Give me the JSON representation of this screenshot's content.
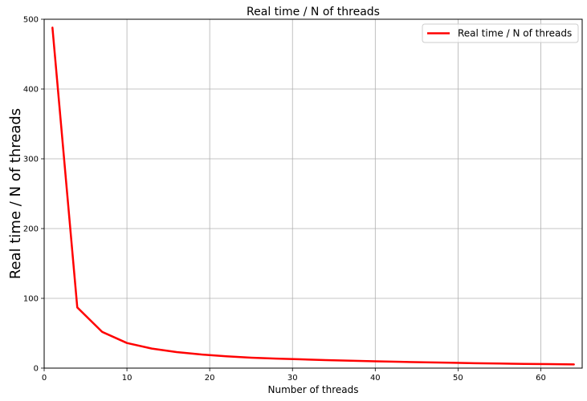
{
  "chart_data": {
    "type": "line",
    "title": "Real time / N of threads",
    "xlabel": "Number of threads",
    "ylabel": "Real time / N of threads",
    "xlim": [
      0,
      65
    ],
    "ylim": [
      0,
      500
    ],
    "xticks": [
      0,
      10,
      20,
      30,
      40,
      50,
      60
    ],
    "yticks": [
      0,
      100,
      200,
      300,
      400,
      500
    ],
    "grid": true,
    "legend_position": "top-right",
    "series": [
      {
        "name": "Real time / N of threads",
        "color": "#ff0000",
        "x": [
          1,
          4,
          7,
          10,
          13,
          16,
          19,
          22,
          25,
          28,
          31,
          34,
          37,
          40,
          43,
          46,
          49,
          52,
          55,
          58,
          61,
          64
        ],
        "y": [
          488,
          87,
          52,
          36,
          28,
          23,
          19.5,
          17,
          15,
          13.7,
          12.6,
          11.5,
          10.6,
          9.8,
          9.0,
          8.3,
          7.7,
          7.1,
          6.6,
          6.1,
          5.7,
          5.3
        ]
      }
    ]
  }
}
